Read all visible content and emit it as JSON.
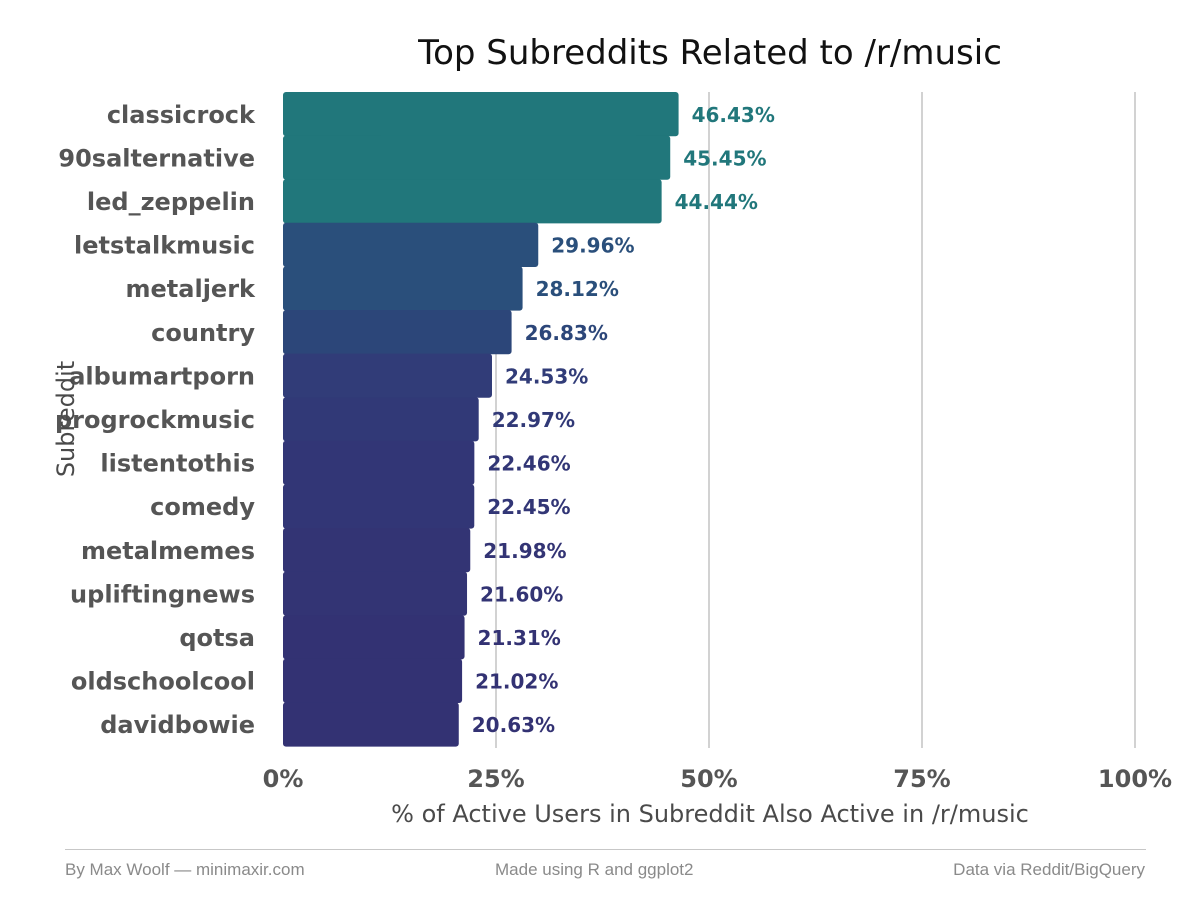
{
  "chart_data": {
    "type": "bar",
    "orientation": "horizontal",
    "title": "Top Subreddits Related to /r/music",
    "xlabel": "% of Active Users in Subreddit Also Active in /r/music",
    "ylabel": "Subreddit",
    "xlim": [
      0,
      100
    ],
    "xticks": [
      "0%",
      "25%",
      "50%",
      "75%",
      "100%"
    ],
    "xtick_values": [
      0,
      25,
      50,
      75,
      100
    ],
    "grid": "vertical major",
    "categories": [
      "classicrock",
      "90salternative",
      "led_zeppelin",
      "letstalkmusic",
      "metaljerk",
      "country",
      "albumartporn",
      "progrockmusic",
      "listentothis",
      "comedy",
      "metalmemes",
      "upliftingnews",
      "qotsa",
      "oldschoolcool",
      "davidbowie"
    ],
    "values": [
      46.43,
      45.45,
      44.44,
      29.96,
      28.12,
      26.83,
      24.53,
      22.97,
      22.46,
      22.45,
      21.98,
      21.6,
      21.31,
      21.02,
      20.63
    ],
    "value_labels": [
      "46.43%",
      "45.45%",
      "44.44%",
      "29.96%",
      "28.12%",
      "26.83%",
      "24.53%",
      "22.97%",
      "22.46%",
      "22.45%",
      "21.98%",
      "21.60%",
      "21.31%",
      "21.02%",
      "20.63%"
    ],
    "colors": [
      "#21777b",
      "#21777b",
      "#21777b",
      "#2a4f7b",
      "#2a4f7b",
      "#2c4679",
      "#313c78",
      "#313977",
      "#323676",
      "#323676",
      "#333474",
      "#333474",
      "#333273",
      "#333273",
      "#333273"
    ],
    "legend": "none"
  },
  "footer": {
    "left": "By Max Woolf — minimaxir.com",
    "center": "Made using R and ggplot2",
    "right": "Data via Reddit/BigQuery"
  }
}
